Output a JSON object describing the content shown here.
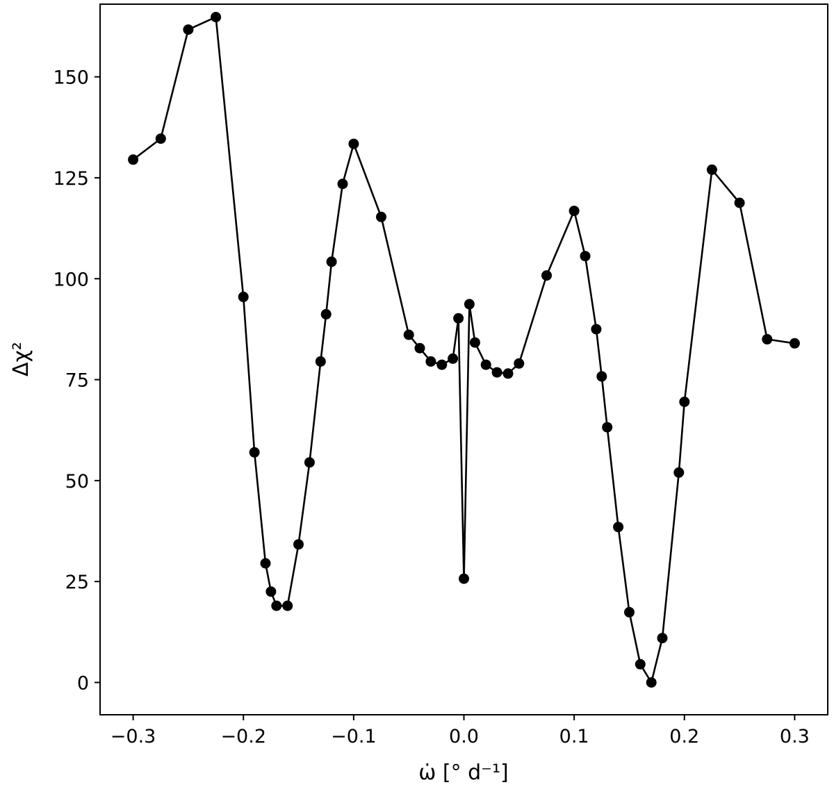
{
  "chart_data": {
    "type": "line",
    "xlabel": "ω̇ [° d⁻¹]",
    "ylabel": "Δχ²",
    "xlim": [
      -0.33,
      0.33
    ],
    "ylim": [
      -8,
      168
    ],
    "xticks": [
      -0.3,
      -0.2,
      -0.1,
      0.0,
      0.1,
      0.2,
      0.3
    ],
    "xtick_labels": [
      "−0.3",
      "−0.2",
      "−0.1",
      "0.0",
      "0.1",
      "0.2",
      "0.3"
    ],
    "yticks": [
      0,
      25,
      50,
      75,
      100,
      125,
      150
    ],
    "ytick_labels": [
      "0",
      "25",
      "50",
      "75",
      "100",
      "125",
      "150"
    ],
    "grid": false,
    "series": [
      {
        "color": "#000000",
        "marker": "circle",
        "points": [
          [
            -0.3,
            129.5
          ],
          [
            -0.275,
            134.7
          ],
          [
            -0.25,
            161.7
          ],
          [
            -0.225,
            164.8
          ],
          [
            -0.2,
            95.5
          ],
          [
            -0.19,
            57.0
          ],
          [
            -0.18,
            29.5
          ],
          [
            -0.175,
            22.5
          ],
          [
            -0.17,
            19.0
          ],
          [
            -0.16,
            19.0
          ],
          [
            -0.15,
            34.2
          ],
          [
            -0.14,
            54.5
          ],
          [
            -0.13,
            79.5
          ],
          [
            -0.125,
            91.2
          ],
          [
            -0.12,
            104.2
          ],
          [
            -0.11,
            123.5
          ],
          [
            -0.1,
            133.4
          ],
          [
            -0.075,
            115.3
          ],
          [
            -0.05,
            86.1
          ],
          [
            -0.04,
            82.8
          ],
          [
            -0.03,
            79.5
          ],
          [
            -0.02,
            78.7
          ],
          [
            -0.01,
            80.2
          ],
          [
            -0.005,
            90.2
          ],
          [
            0.0,
            25.7
          ],
          [
            0.005,
            93.7
          ],
          [
            0.01,
            84.2
          ],
          [
            0.02,
            78.7
          ],
          [
            0.03,
            76.8
          ],
          [
            0.04,
            76.5
          ],
          [
            0.05,
            79.0
          ],
          [
            0.075,
            100.8
          ],
          [
            0.1,
            116.8
          ],
          [
            0.11,
            105.6
          ],
          [
            0.12,
            87.5
          ],
          [
            0.125,
            75.8
          ],
          [
            0.13,
            63.2
          ],
          [
            0.14,
            38.5
          ],
          [
            0.15,
            17.4
          ],
          [
            0.16,
            4.5
          ],
          [
            0.17,
            0.0
          ],
          [
            0.18,
            11.0
          ],
          [
            0.195,
            52.0
          ],
          [
            0.2,
            69.5
          ],
          [
            0.225,
            127.0
          ],
          [
            0.25,
            118.8
          ],
          [
            0.275,
            85.0
          ],
          [
            0.3,
            84.0
          ]
        ]
      }
    ]
  }
}
